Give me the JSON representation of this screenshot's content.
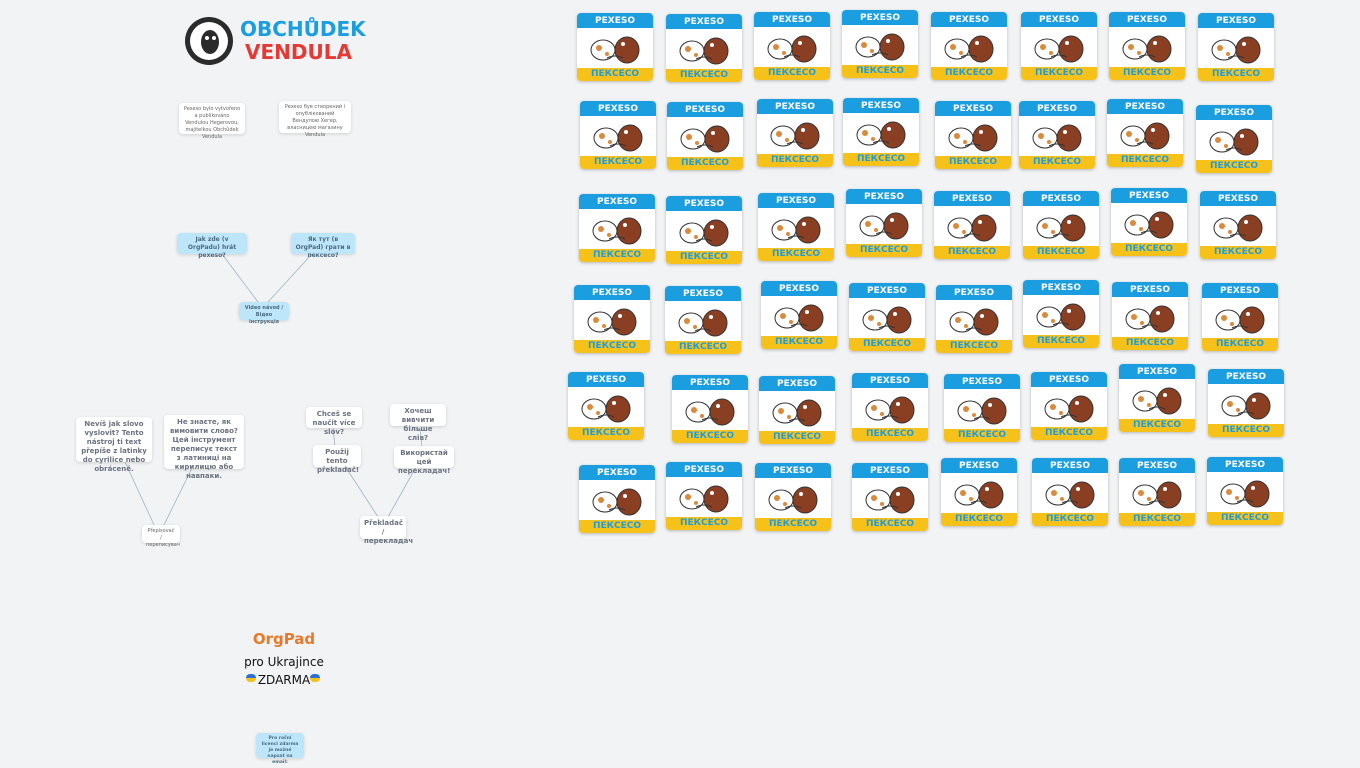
{
  "logo": {
    "line1": "OBCHŮDEK",
    "line2": "VENDULA"
  },
  "notes": {
    "credit_cz": "Pexeso bylo vytvořeno a publikováno Vendulou Hegerovou, majitelkou Obchůdek Vendula",
    "credit_ua": "Pexeso був створений і опублікований Вендулою Хегер, власницею магазину Vendula",
    "how_cz": "Jak zde (v OrgPadu) hrát pexeso?",
    "how_ua": "Як тут (в OrgPad) грати в пексесо?",
    "video": "Video návod / Відео інструкція",
    "translit_q_cz": "Nevíš jak slovo vyslovit? Tento nástroj ti text přepíše z latinky do cyrilice nebo obráceně.",
    "translit_q_ua": "Не знаєте, як вимовити слово? Цей інструмент переписує текст з латиниці на кирилицю або навпаки.",
    "translit": "Přepisovač / переписувач",
    "learn_cz": "Chceš se naučit více slov?",
    "learn_ua": "Хочеш вивчити більше слів?",
    "use_cz": "Použij tento překladač!",
    "use_ua": "Використай цей перекладач!",
    "translator": "Překladač / перекладач",
    "license": "Pro roční licenci zdarma je možné napsat na email:"
  },
  "orgpad": {
    "brand": "OrgPad",
    "line1": "pro Ukrajince",
    "line2": "ZDARMA"
  },
  "cards": {
    "top_label": "PEXESO",
    "bottom_label": "ПЕКСЕСО",
    "count": 48
  },
  "colors": {
    "card_top": "#1b9ee0",
    "card_bottom": "#f6c21a",
    "note_blue": "#bde6fb",
    "background": "#f1f3f5"
  }
}
